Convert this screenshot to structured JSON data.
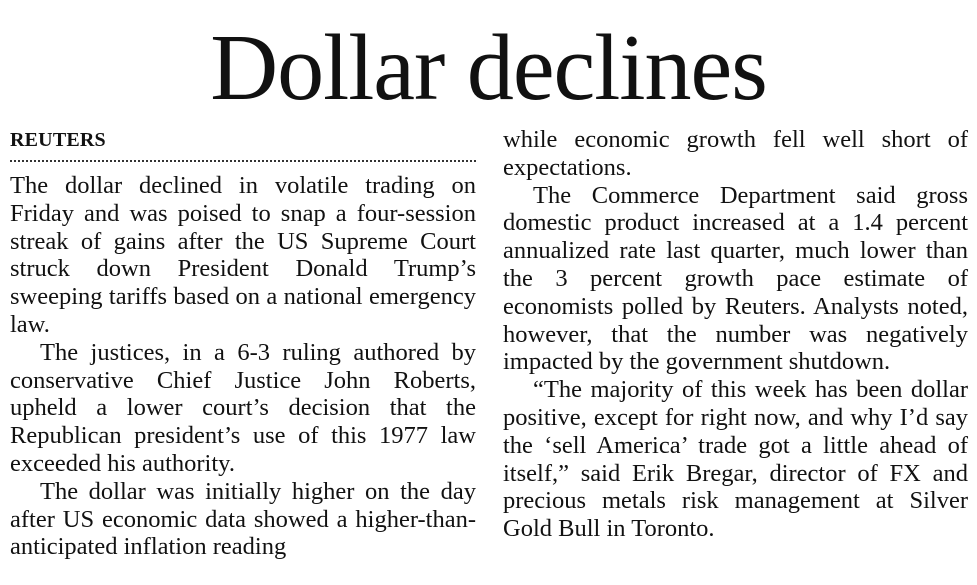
{
  "article": {
    "headline": "Dollar declines",
    "byline": "REUTERS",
    "left_column": [
      "The dollar declined in volatile trading on Friday and was poised to snap a four-session streak of gains after the US Supreme Court struck down President Donald Trump’s sweeping tariffs based on a national emergency law.",
      "The justices, in a 6-3 ruling authored by conservative Chief Justice John Roberts, upheld a lower court’s decision that the Republican president’s use of this 1977 law exceeded his authority.",
      "The dollar was initially higher on the day after US economic data showed a higher-than-anticipated inflation reading"
    ],
    "right_column": [
      "while economic growth fell well short of expectations.",
      "The Commerce Department said gross domestic product increased at a 1.4 percent annualized rate last quarter, much lower than the 3 percent growth pace estimate of economists polled by Reuters. Analysts noted, however, that the number was negatively impacted by the government shutdown.",
      "“The majority of this week has been dollar positive, except for right now, and why I’d say the ‘sell America’ trade got a little ahead of itself,” said Erik Bregar, director of FX and precious metals risk management at Silver Gold Bull in Toronto."
    ]
  }
}
